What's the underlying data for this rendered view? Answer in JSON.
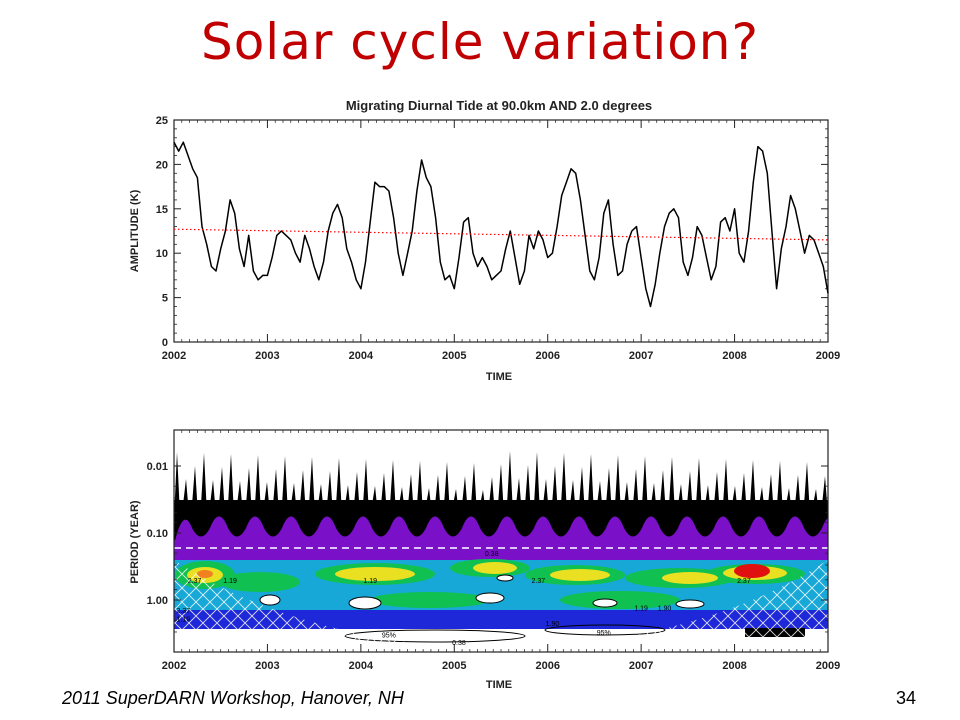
{
  "slide": {
    "title": "Solar cycle variation?",
    "footer": "2011 SuperDARN Workshop, Hanover, NH",
    "page_number": "34"
  },
  "chart_data": [
    {
      "type": "line",
      "title": "Migrating Diurnal Tide at  90.0km AND  2.0 degrees",
      "xlabel": "TIME",
      "ylabel": "AMPLITUDE (K)",
      "xlim": [
        2002,
        2009
      ],
      "ylim": [
        0,
        25
      ],
      "x_ticks": [
        "2002",
        "2003",
        "2004",
        "2005",
        "2006",
        "2007",
        "2008",
        "2009"
      ],
      "y_ticks": [
        "0",
        "5",
        "10",
        "15",
        "20",
        "25"
      ],
      "series": [
        {
          "color": "#000000",
          "x": [
            2002.0,
            2002.05,
            2002.1,
            2002.15,
            2002.2,
            2002.25,
            2002.3,
            2002.35,
            2002.4,
            2002.45,
            2002.5,
            2002.55,
            2002.6,
            2002.65,
            2002.7,
            2002.75,
            2002.8,
            2002.85,
            2002.9,
            2002.95,
            2003.0,
            2003.05,
            2003.1,
            2003.15,
            2003.2,
            2003.25,
            2003.3,
            2003.35,
            2003.4,
            2003.45,
            2003.5,
            2003.55,
            2003.6,
            2003.65,
            2003.7,
            2003.75,
            2003.8,
            2003.85,
            2003.9,
            2003.95,
            2004.0,
            2004.05,
            2004.1,
            2004.15,
            2004.2,
            2004.25,
            2004.3,
            2004.35,
            2004.4,
            2004.45,
            2004.5,
            2004.55,
            2004.6,
            2004.65,
            2004.7,
            2004.75,
            2004.8,
            2004.85,
            2004.9,
            2004.95,
            2005.0,
            2005.05,
            2005.1,
            2005.15,
            2005.2,
            2005.25,
            2005.3,
            2005.35,
            2005.4,
            2005.45,
            2005.5,
            2005.55,
            2005.6,
            2005.65,
            2005.7,
            2005.75,
            2005.8,
            2005.85,
            2005.9,
            2005.95,
            2006.0,
            2006.05,
            2006.1,
            2006.15,
            2006.2,
            2006.25,
            2006.3,
            2006.35,
            2006.4,
            2006.45,
            2006.5,
            2006.55,
            2006.6,
            2006.65,
            2006.7,
            2006.75,
            2006.8,
            2006.85,
            2006.9,
            2006.95,
            2007.0,
            2007.05,
            2007.1,
            2007.15,
            2007.2,
            2007.25,
            2007.3,
            2007.35,
            2007.4,
            2007.45,
            2007.5,
            2007.55,
            2007.6,
            2007.65,
            2007.7,
            2007.75,
            2007.8,
            2007.85,
            2007.9,
            2007.95,
            2008.0,
            2008.05,
            2008.1,
            2008.15,
            2008.2,
            2008.25,
            2008.3,
            2008.35,
            2008.4,
            2008.45,
            2008.5,
            2008.55,
            2008.6,
            2008.65,
            2008.7,
            2008.75,
            2008.8,
            2008.85,
            2008.9,
            2008.95,
            2009.0
          ],
          "values": [
            22.5,
            21.5,
            22.5,
            21.0,
            19.5,
            18.5,
            13.0,
            11.0,
            8.5,
            8.0,
            10.5,
            12.5,
            16.0,
            14.5,
            10.5,
            8.5,
            12.0,
            8.0,
            7.0,
            7.5,
            7.5,
            9.5,
            12.0,
            12.5,
            12.0,
            11.5,
            10.0,
            9.0,
            12.0,
            10.5,
            8.5,
            7.0,
            9.0,
            12.5,
            14.5,
            15.5,
            14.0,
            10.5,
            9.0,
            7.0,
            6.0,
            9.0,
            13.5,
            18.0,
            17.5,
            17.5,
            17.0,
            14.0,
            10.0,
            7.5,
            10.0,
            12.5,
            17.0,
            20.5,
            18.5,
            17.5,
            14.0,
            9.0,
            7.0,
            7.5,
            6.0,
            9.5,
            13.5,
            14.0,
            10.0,
            8.5,
            9.5,
            8.5,
            7.0,
            7.5,
            8.0,
            10.5,
            12.5,
            9.5,
            6.5,
            8.0,
            12.0,
            10.5,
            12.5,
            11.5,
            9.5,
            10.0,
            13.0,
            16.5,
            18.0,
            19.5,
            19.0,
            16.0,
            12.0,
            8.0,
            7.0,
            9.5,
            14.5,
            16.0,
            11.0,
            7.5,
            8.0,
            11.0,
            12.5,
            13.0,
            9.5,
            6.0,
            4.0,
            6.5,
            10.0,
            13.0,
            14.5,
            15.0,
            14.0,
            9.0,
            7.5,
            9.5,
            13.0,
            12.0,
            9.5,
            7.0,
            8.5,
            13.5,
            14.0,
            12.5,
            15.0,
            10.0,
            9.0,
            12.5,
            18.0,
            22.0,
            21.5,
            19.0,
            12.5,
            6.0,
            10.5,
            13.0,
            16.5,
            15.0,
            12.5,
            10.0,
            12.0,
            11.5,
            10.0,
            8.5,
            5.5
          ]
        },
        {
          "color": "#ff0000",
          "style": "dotted",
          "x": [
            2002.0,
            2009.0
          ],
          "values": [
            12.7,
            11.5
          ]
        }
      ]
    },
    {
      "type": "heatmap",
      "xlabel": "TIME",
      "ylabel": "PERIOD (YEAR)",
      "xlim": [
        2002,
        2009
      ],
      "y_scale": "log",
      "x_ticks": [
        "2002",
        "2003",
        "2004",
        "2005",
        "2006",
        "2007",
        "2008",
        "2009"
      ],
      "y_ticks": [
        "0.01",
        "0.10",
        "1.00"
      ],
      "colors": [
        "#000000",
        "#7a10c8",
        "#1e28d8",
        "#18a8d8",
        "#10c050",
        "#e8e020",
        "#e01010"
      ],
      "contour_labels": [
        {
          "text": "2.37",
          "x": 2002.22,
          "y": 0.5
        },
        {
          "text": "1.19",
          "x": 2002.6,
          "y": 0.5
        },
        {
          "text": "1.19",
          "x": 2004.1,
          "y": 0.5
        },
        {
          "text": "2.37",
          "x": 2005.9,
          "y": 0.5
        },
        {
          "text": "2.37",
          "x": 2008.1,
          "y": 0.5
        },
        {
          "text": "1.19",
          "x": 2007.0,
          "y": 1.3
        },
        {
          "text": "1.90",
          "x": 2007.25,
          "y": 1.3
        },
        {
          "text": "2.37",
          "x": 2002.1,
          "y": 1.4
        },
        {
          "text": "1.19",
          "x": 2002.1,
          "y": 1.9
        },
        {
          "text": "1.90",
          "x": 2006.05,
          "y": 2.2
        },
        {
          "text": "95%",
          "x": 2004.3,
          "y": 3.3
        },
        {
          "text": "95%",
          "x": 2006.6,
          "y": 3.0
        },
        {
          "text": "0.38",
          "x": 2005.05,
          "y": 4.2
        },
        {
          "text": "0.38",
          "x": 2005.4,
          "y": 0.2
        }
      ]
    }
  ]
}
